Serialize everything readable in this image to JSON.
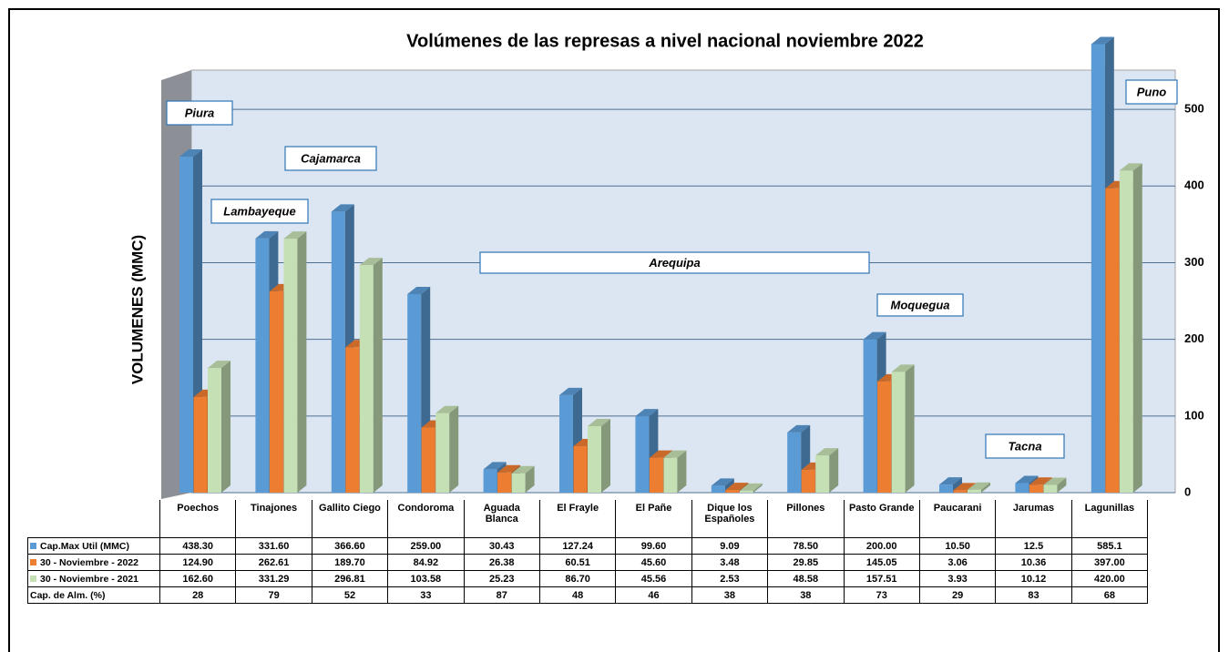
{
  "chart_data": {
    "type": "bar",
    "title": "Volúmenes de las represas a nivel nacional noviembre 2022",
    "y_label": "VOLUMENES (MMC)",
    "categories": [
      "Poechos",
      "Tinajones",
      "Gallito Ciego",
      "Condoroma",
      "Aguada Blanca",
      "El Frayle",
      "El Pañe",
      "Dique los Españoles",
      "Pillones",
      "Pasto Grande",
      "Paucarani",
      "Jarumas",
      "Lagunillas"
    ],
    "series": [
      {
        "name": "Cap.Max Util (MMC)",
        "color": "#5b9bd5",
        "values": [
          438.3,
          331.6,
          366.6,
          259,
          30.43,
          127.24,
          99.6,
          9.09,
          78.5,
          200,
          10.5,
          12.5,
          585.1
        ],
        "value_labels": [
          "438.30",
          "331.60",
          "366.60",
          "259.00",
          "30.43",
          "127.24",
          "99.60",
          "9.09",
          "78.50",
          "200.00",
          "10.50",
          "12.5",
          "585.1"
        ]
      },
      {
        "name": "30 - Noviembre - 2022",
        "color": "#ed7d31",
        "values": [
          124.9,
          262.61,
          189.7,
          84.92,
          26.38,
          60.51,
          45.6,
          3.48,
          29.85,
          145.05,
          3.06,
          10.36,
          397
        ],
        "value_labels": [
          "124.90",
          "262.61",
          "189.70",
          "84.92",
          "26.38",
          "60.51",
          "45.60",
          "3.48",
          "29.85",
          "145.05",
          "3.06",
          "10.36",
          "397.00"
        ]
      },
      {
        "name": "30 - Noviembre - 2021",
        "color": "#c5e0b4",
        "values": [
          162.6,
          331.29,
          296.81,
          103.58,
          25.23,
          86.7,
          45.56,
          2.53,
          48.58,
          157.51,
          3.93,
          10.12,
          420
        ],
        "value_labels": [
          "162.60",
          "331.29",
          "296.81",
          "103.58",
          "25.23",
          "86.70",
          "45.56",
          "2.53",
          "48.58",
          "157.51",
          "3.93",
          "10.12",
          "420.00"
        ]
      }
    ],
    "capacity_row": {
      "name": "Cap. de Alm.  (%)",
      "values": [
        28,
        79,
        52,
        33,
        87,
        48,
        46,
        38,
        38,
        73,
        29,
        83,
        68
      ]
    },
    "annotations": [
      "Piura",
      "Cajamarca",
      "Lambayeque",
      "Arequipa",
      "Moquegua",
      "Tacna",
      "Puno"
    ],
    "ylim": [
      0,
      550
    ],
    "yticks": [
      0,
      100,
      200,
      300,
      400,
      500
    ],
    "grid": true
  }
}
